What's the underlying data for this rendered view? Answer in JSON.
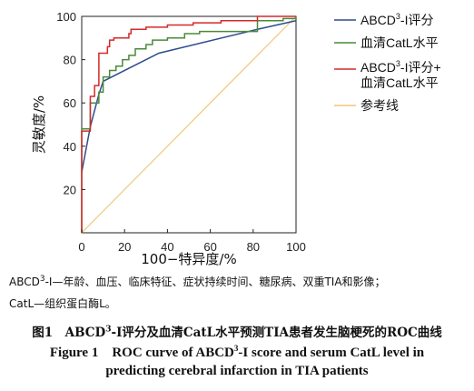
{
  "chart_data": {
    "type": "line",
    "xlabel": "100−特异度/%",
    "ylabel": "灵敏度/%",
    "xlim": [
      0,
      100
    ],
    "ylim": [
      0,
      100
    ],
    "xticks": [
      0,
      20,
      40,
      60,
      80,
      100
    ],
    "yticks": [
      20,
      40,
      60,
      80,
      100
    ],
    "grid": false,
    "legend_position": "right",
    "colors": {
      "abcd3": "#2e4c8c",
      "catl": "#4a8a3a",
      "combined": "#d42a2a",
      "reference": "#f0c77a"
    },
    "series": [
      {
        "key": "abcd3",
        "name_prefix": "ABCD",
        "name_sup": "3",
        "name_suffix": "-I评分",
        "points": [
          [
            0,
            28
          ],
          [
            4,
            49
          ],
          [
            8,
            64
          ],
          [
            10,
            70
          ],
          [
            36,
            83
          ],
          [
            82,
            94
          ],
          [
            100,
            98
          ]
        ]
      },
      {
        "key": "catl",
        "name": "血清CatL水平",
        "points": [
          [
            0,
            0
          ],
          [
            0,
            48
          ],
          [
            4,
            48
          ],
          [
            4,
            60
          ],
          [
            8,
            60
          ],
          [
            8,
            65
          ],
          [
            10,
            65
          ],
          [
            10,
            72
          ],
          [
            13,
            72
          ],
          [
            13,
            75
          ],
          [
            16,
            75
          ],
          [
            16,
            77
          ],
          [
            19,
            77
          ],
          [
            19,
            80
          ],
          [
            22,
            80
          ],
          [
            22,
            82
          ],
          [
            25,
            82
          ],
          [
            25,
            85
          ],
          [
            30,
            85
          ],
          [
            30,
            87
          ],
          [
            33,
            87
          ],
          [
            33,
            89
          ],
          [
            40,
            89
          ],
          [
            40,
            90
          ],
          [
            48,
            90
          ],
          [
            48,
            92
          ],
          [
            55,
            92
          ],
          [
            55,
            93
          ],
          [
            82,
            93
          ],
          [
            82,
            98
          ],
          [
            94,
            98
          ],
          [
            94,
            99
          ],
          [
            100,
            99
          ],
          [
            100,
            100
          ]
        ]
      },
      {
        "key": "combined",
        "name_prefix": "ABCD",
        "name_sup": "3",
        "name_suffix": "-I评分+",
        "name_line2": "血清CatL水平",
        "points": [
          [
            0,
            0
          ],
          [
            0,
            47
          ],
          [
            4,
            47
          ],
          [
            4,
            63
          ],
          [
            6,
            63
          ],
          [
            6,
            68
          ],
          [
            8,
            68
          ],
          [
            8,
            83
          ],
          [
            12,
            83
          ],
          [
            12,
            86
          ],
          [
            13,
            86
          ],
          [
            13,
            89
          ],
          [
            15,
            89
          ],
          [
            15,
            90
          ],
          [
            22,
            90
          ],
          [
            22,
            92
          ],
          [
            23,
            92
          ],
          [
            23,
            94
          ],
          [
            30,
            94
          ],
          [
            30,
            95
          ],
          [
            40,
            95
          ],
          [
            40,
            96
          ],
          [
            52,
            96
          ],
          [
            52,
            97
          ],
          [
            55,
            97
          ],
          [
            55,
            97
          ],
          [
            65,
            97
          ],
          [
            65,
            98
          ],
          [
            75,
            98
          ],
          [
            75,
            98
          ],
          [
            82,
            98
          ],
          [
            82,
            100
          ],
          [
            100,
            100
          ]
        ]
      },
      {
        "key": "reference",
        "name": "参考线",
        "points": [
          [
            0,
            0
          ],
          [
            100,
            100
          ]
        ]
      }
    ]
  },
  "notes": {
    "line1_prefix": "ABCD",
    "line1_sup": "3",
    "line1_suffix": "-I—年龄、血压、临床特征、症状持续时间、糖尿病、双重TIA和影像；",
    "line2": "CatL—组织蛋白酶L。"
  },
  "caption": {
    "cn_prefix": "图1　ABCD",
    "cn_sup": "3",
    "cn_suffix": "-I评分及血清CatL水平预测TIA患者发生脑梗死的ROC曲线",
    "en_line1_prefix": "Figure 1　ROC curve of ABCD",
    "en_line1_sup": "3",
    "en_line1_suffix": "-I score and serum CatL level in",
    "en_line2": "predicting cerebral infarction in TIA patients"
  }
}
